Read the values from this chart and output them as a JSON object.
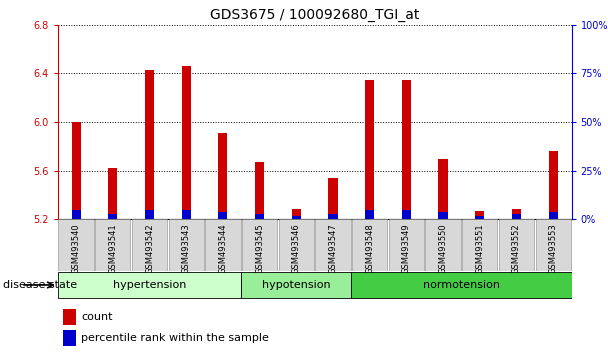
{
  "title": "GDS3675 / 100092680_TGI_at",
  "samples": [
    "GSM493540",
    "GSM493541",
    "GSM493542",
    "GSM493543",
    "GSM493544",
    "GSM493545",
    "GSM493546",
    "GSM493547",
    "GSM493548",
    "GSM493549",
    "GSM493550",
    "GSM493551",
    "GSM493552",
    "GSM493553"
  ],
  "count_values": [
    6.0,
    5.62,
    6.43,
    6.46,
    5.91,
    5.67,
    5.29,
    5.54,
    6.35,
    6.35,
    5.7,
    5.27,
    5.29,
    5.76
  ],
  "percentile_values": [
    5,
    3,
    5,
    5,
    4,
    3,
    2,
    3,
    5,
    5,
    4,
    2,
    3,
    4
  ],
  "baseline": 5.2,
  "ylim_left": [
    5.2,
    6.8
  ],
  "ylim_right": [
    0,
    100
  ],
  "yticks_left": [
    5.2,
    5.6,
    6.0,
    6.4,
    6.8
  ],
  "yticks_right": [
    0,
    25,
    50,
    75,
    100
  ],
  "groups": [
    {
      "label": "hypertension",
      "start": 0,
      "end": 5,
      "color": "#ccffcc"
    },
    {
      "label": "hypotension",
      "start": 5,
      "end": 8,
      "color": "#99ee99"
    },
    {
      "label": "normotension",
      "start": 8,
      "end": 14,
      "color": "#44cc44"
    }
  ],
  "bar_width": 0.25,
  "count_color": "#cc0000",
  "percentile_color": "#0000cc",
  "bg_color": "#ffffff",
  "tick_color_left": "#cc0000",
  "tick_color_right": "#0000cc",
  "grid_color": "#000000",
  "disease_state_label": "disease state",
  "legend_count": "count",
  "legend_percentile": "percentile rank within the sample",
  "title_fontsize": 10,
  "tick_fontsize": 7,
  "label_fontsize": 8
}
